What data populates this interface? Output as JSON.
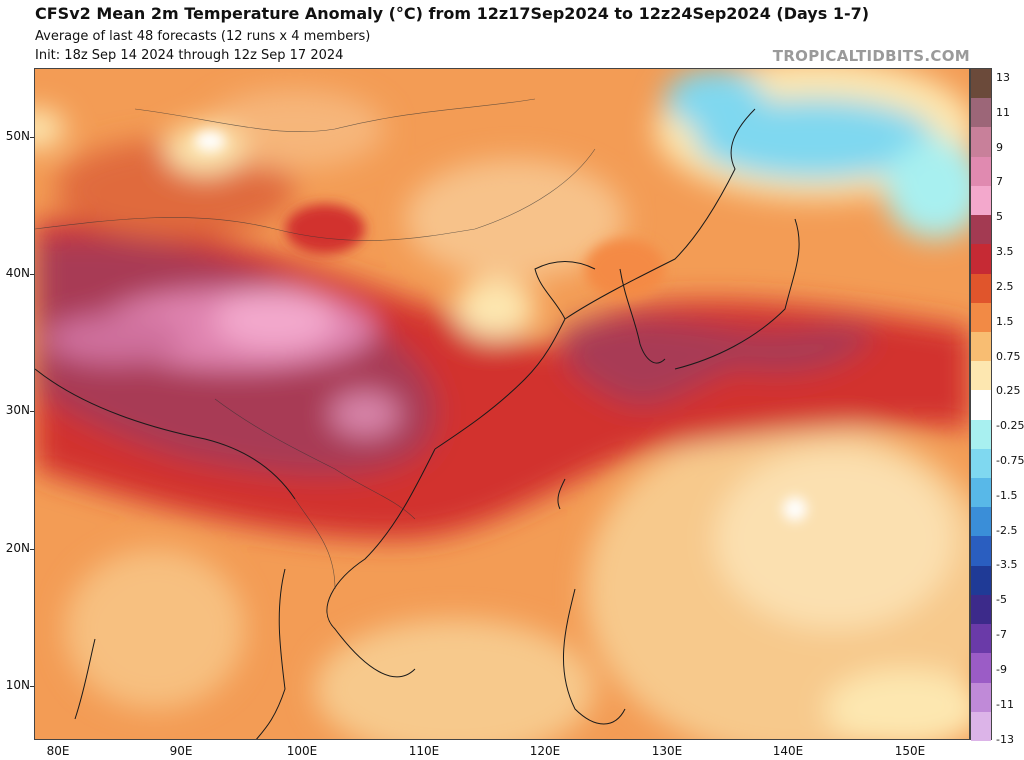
{
  "header": {
    "title": "CFSv2 Mean 2m Temperature Anomaly (°C) from 12z17Sep2024 to 12z24Sep2024 (Days 1-7)",
    "subtitle": "Average of last 48 forecasts (12 runs x 4 members)",
    "init": "Init: 18z Sep 14 2024 through 12z Sep 17 2024",
    "brand": "TROPICALTIDBITS.COM"
  },
  "map": {
    "lat_labels": [
      "50N",
      "40N",
      "30N",
      "20N",
      "10N"
    ],
    "lon_labels": [
      "80E",
      "90E",
      "100E",
      "110E",
      "120E",
      "130E",
      "140E",
      "150E"
    ]
  },
  "colorbar": {
    "labels": [
      "13",
      "11",
      "9",
      "7",
      "5",
      "3.5",
      "2.5",
      "1.5",
      "0.75",
      "0.25",
      "-0.25",
      "-0.75",
      "-1.5",
      "-2.5",
      "-3.5",
      "-5",
      "-7",
      "-9",
      "-11",
      "-13"
    ],
    "colors": [
      "#6b4a3a",
      "#9c6678",
      "#c8809a",
      "#e08ab0",
      "#f3a8cc",
      "#a33a52",
      "#c62a34",
      "#e0552c",
      "#f28a45",
      "#f8bd72",
      "#fde7b0",
      "#ffffff",
      "#a8f0f0",
      "#7fd8f0",
      "#58b8e8",
      "#3a8ed8",
      "#2a5ec0",
      "#1f3a96",
      "#3c2a8a",
      "#6a3aa8",
      "#9b5cc6",
      "#c08ad8",
      "#dcb4e8"
    ]
  }
}
